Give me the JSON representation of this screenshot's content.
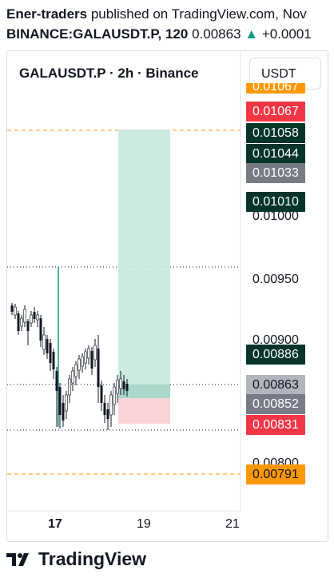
{
  "header": {
    "author": "Ener-traders",
    "published_text": "published on TradingView.com, Nov",
    "symbol_line": "BINANCE:GALAUSDT.P, 120",
    "price": "0.00863",
    "change_arrow": "▲",
    "change": "+0.0001"
  },
  "chart": {
    "title": "GALAUSDT.P · 2h · Binance",
    "currency_button": "USDT",
    "price_axis": [
      "0.01000",
      "0.00950",
      "0.00900",
      "0.00800"
    ],
    "time_axis": [
      "17",
      "19",
      "21"
    ],
    "price_tags": [
      {
        "label": "0.01067",
        "color": "#ff9800",
        "clipped": true
      },
      {
        "label": "0.01067",
        "color": "#f23645"
      },
      {
        "label": "0.01058",
        "color": "#053529"
      },
      {
        "label": "0.01044",
        "color": "#053529"
      },
      {
        "label": "0.01033",
        "color": "#787b86"
      },
      {
        "label": "0.01010",
        "color": "#053529"
      },
      {
        "label": "0.00886",
        "color": "#053529"
      },
      {
        "label": "0.00863",
        "color": "#b2b5be"
      },
      {
        "label": "0.00852",
        "color": "#787b86"
      },
      {
        "label": "0.00831",
        "color": "#f23645"
      },
      {
        "label": "0.00791",
        "color": "#ff9800"
      }
    ]
  },
  "footer": {
    "brand": "TradingView",
    "logo_icon": "tradingview-logo-icon"
  }
}
